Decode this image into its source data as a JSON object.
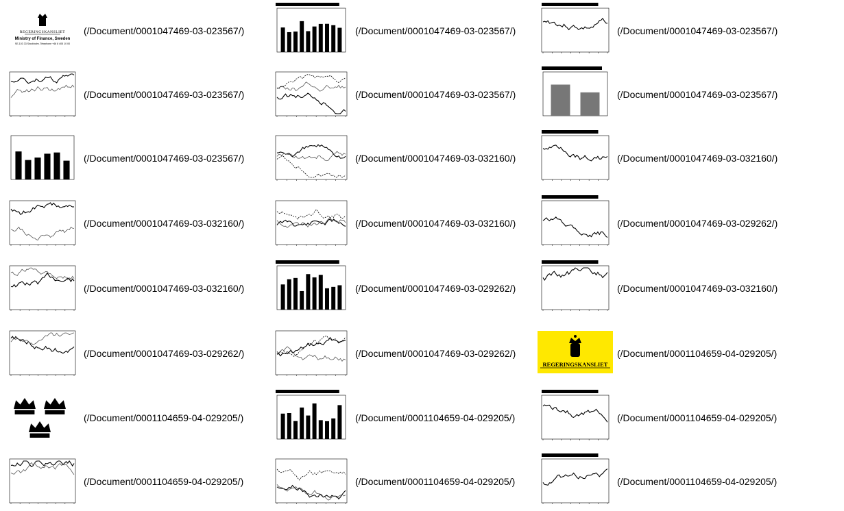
{
  "rows": [
    [
      {
        "thumb": "ministry-logo",
        "link": "(/Document/0001047469-03-023567/)",
        "logo_word": "REGERINGSKANSLIET",
        "logo_title": "Ministry of Finance, Sweden",
        "logo_address": "SE-103 33 Stockholm. Telephone +46 8 405 10 00"
      },
      {
        "thumb": "bar-chart",
        "link": "(/Document/0001047469-03-023567/)"
      },
      {
        "thumb": "line-chart",
        "link": "(/Document/0001047469-03-023567/)"
      }
    ],
    [
      {
        "thumb": "line-chart",
        "link": "(/Document/0001047469-03-023567/)"
      },
      {
        "thumb": "line-chart",
        "link": "(/Document/0001047469-03-023567/)"
      },
      {
        "thumb": "bar-chart",
        "link": "(/Document/0001047469-03-023567/)"
      }
    ],
    [
      {
        "thumb": "bar-chart",
        "link": "(/Document/0001047469-03-023567/)"
      },
      {
        "thumb": "line-chart",
        "link": "(/Document/0001047469-03-032160/)"
      },
      {
        "thumb": "line-chart",
        "link": "(/Document/0001047469-03-032160/)"
      }
    ],
    [
      {
        "thumb": "line-chart",
        "link": "(/Document/0001047469-03-032160/)"
      },
      {
        "thumb": "line-chart",
        "link": "(/Document/0001047469-03-032160/)"
      },
      {
        "thumb": "line-chart",
        "link": "(/Document/0001047469-03-029262/)"
      }
    ],
    [
      {
        "thumb": "line-chart",
        "link": "(/Document/0001047469-03-032160/)"
      },
      {
        "thumb": "bar-chart",
        "link": "(/Document/0001047469-03-029262/)"
      },
      {
        "thumb": "line-chart",
        "link": "(/Document/0001047469-03-032160/)"
      }
    ],
    [
      {
        "thumb": "line-chart",
        "link": "(/Document/0001047469-03-029262/)"
      },
      {
        "thumb": "line-chart",
        "link": "(/Document/0001047469-03-029262/)"
      },
      {
        "thumb": "crest-logo",
        "link": "(/Document/0001104659-04-029205/)",
        "logo_word": "REGERINGSKANSLIET"
      }
    ],
    [
      {
        "thumb": "three-crowns-icon",
        "link": "(/Document/0001104659-04-029205/)"
      },
      {
        "thumb": "bar-chart",
        "link": "(/Document/0001104659-04-029205/)"
      },
      {
        "thumb": "line-chart",
        "link": "(/Document/0001104659-04-029205/)"
      }
    ],
    [
      {
        "thumb": "line-chart",
        "link": "(/Document/0001104659-04-029205/)"
      },
      {
        "thumb": "line-chart",
        "link": "(/Document/0001104659-04-029205/)"
      },
      {
        "thumb": "line-chart",
        "link": "(/Document/0001104659-04-029205/)"
      }
    ]
  ],
  "colors": {
    "logo_yellow": "#ffe800",
    "ink": "#000000"
  }
}
